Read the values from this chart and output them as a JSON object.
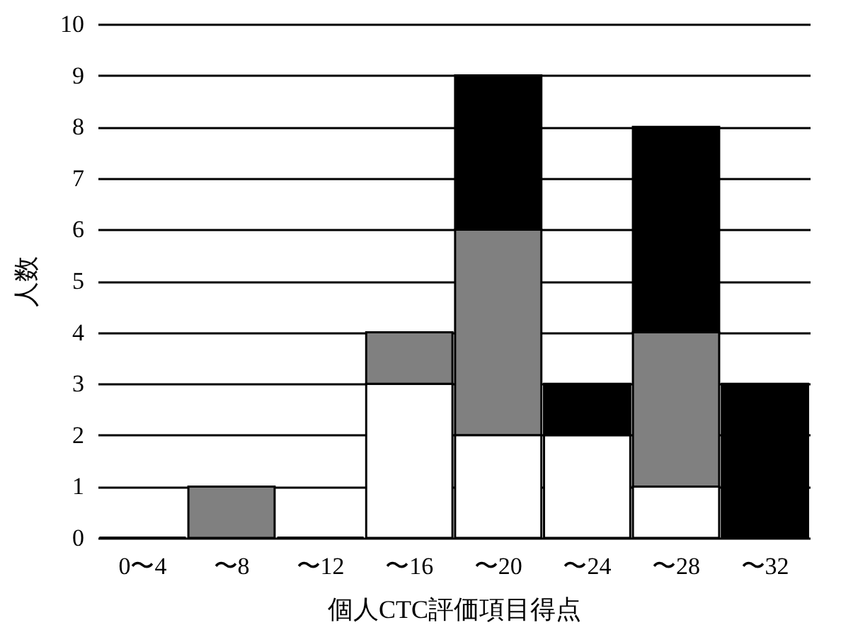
{
  "chart_data": {
    "type": "bar",
    "stacked": true,
    "categories": [
      "0〜4",
      "〜8",
      "〜12",
      "〜16",
      "〜20",
      "〜24",
      "〜28",
      "〜32"
    ],
    "series": [
      {
        "color": "#ffffff",
        "values": [
          0,
          0,
          0,
          3,
          2,
          2,
          1,
          0
        ]
      },
      {
        "color": "#808080",
        "values": [
          0,
          1,
          0,
          1,
          4,
          0,
          3,
          0
        ]
      },
      {
        "color": "#000000",
        "values": [
          0,
          0,
          0,
          0,
          3,
          1,
          4,
          3
        ]
      }
    ],
    "xlabel": "個人CTC評価項目得点",
    "ylabel": "人数",
    "ylim": [
      0,
      10
    ],
    "yticks": [
      0,
      1,
      2,
      3,
      4,
      5,
      6,
      7,
      8,
      9,
      10
    ],
    "grid": true,
    "legend": false
  }
}
